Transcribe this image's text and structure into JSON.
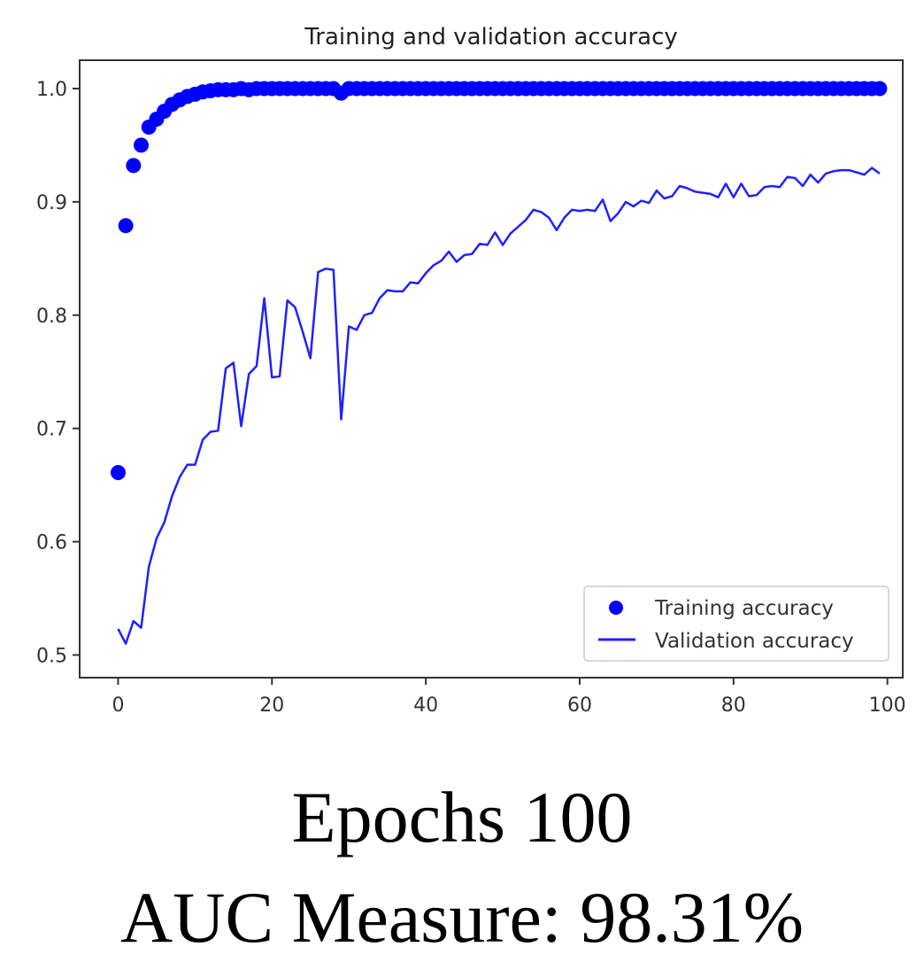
{
  "chart_data": {
    "type": "line",
    "title": "Training and validation accuracy",
    "xlabel": "",
    "ylabel": "",
    "xlim": [
      -5,
      102
    ],
    "ylim": [
      0.48,
      1.025
    ],
    "xticks": [
      0,
      20,
      40,
      60,
      80,
      100
    ],
    "yticks": [
      0.5,
      0.6,
      0.7,
      0.8,
      0.9,
      1.0
    ],
    "ytick_labels": [
      "0.5",
      "0.6",
      "0.7",
      "0.8",
      "0.9",
      "1.0"
    ],
    "grid": false,
    "legend_position": "lower-right",
    "colors": {
      "training": "#0000ff",
      "validation": "#2020ff"
    },
    "series": [
      {
        "name": "Training accuracy",
        "style": "markers",
        "x": [
          0,
          1,
          2,
          3,
          4,
          5,
          6,
          7,
          8,
          9,
          10,
          11,
          12,
          13,
          14,
          15,
          16,
          17,
          18,
          19,
          20,
          21,
          22,
          23,
          24,
          25,
          26,
          27,
          28,
          29,
          30,
          31,
          32,
          33,
          34,
          35,
          36,
          37,
          38,
          39,
          40,
          41,
          42,
          43,
          44,
          45,
          46,
          47,
          48,
          49,
          50,
          51,
          52,
          53,
          54,
          55,
          56,
          57,
          58,
          59,
          60,
          61,
          62,
          63,
          64,
          65,
          66,
          67,
          68,
          69,
          70,
          71,
          72,
          73,
          74,
          75,
          76,
          77,
          78,
          79,
          80,
          81,
          82,
          83,
          84,
          85,
          86,
          87,
          88,
          89,
          90,
          91,
          92,
          93,
          94,
          95,
          96,
          97,
          98,
          99
        ],
        "y": [
          0.661,
          0.879,
          0.932,
          0.95,
          0.966,
          0.973,
          0.98,
          0.986,
          0.99,
          0.993,
          0.995,
          0.997,
          0.998,
          0.999,
          0.999,
          0.999,
          1.0,
          0.999,
          1.0,
          1.0,
          1.0,
          1.0,
          1.0,
          1.0,
          1.0,
          1.0,
          1.0,
          1.0,
          1.0,
          0.996,
          1.0,
          1.0,
          1.0,
          1.0,
          1.0,
          1.0,
          1.0,
          1.0,
          1.0,
          1.0,
          1.0,
          1.0,
          1.0,
          1.0,
          1.0,
          1.0,
          1.0,
          1.0,
          1.0,
          1.0,
          1.0,
          1.0,
          1.0,
          1.0,
          1.0,
          1.0,
          1.0,
          1.0,
          1.0,
          1.0,
          1.0,
          1.0,
          1.0,
          1.0,
          1.0,
          1.0,
          1.0,
          1.0,
          1.0,
          1.0,
          1.0,
          1.0,
          1.0,
          1.0,
          1.0,
          1.0,
          1.0,
          1.0,
          1.0,
          1.0,
          1.0,
          1.0,
          1.0,
          1.0,
          1.0,
          1.0,
          1.0,
          1.0,
          1.0,
          1.0,
          1.0,
          1.0,
          1.0,
          1.0,
          1.0,
          1.0,
          1.0,
          1.0,
          1.0,
          1.0
        ]
      },
      {
        "name": "Validation accuracy",
        "style": "line",
        "x": [
          0,
          1,
          2,
          3,
          4,
          5,
          6,
          7,
          8,
          9,
          10,
          11,
          12,
          13,
          14,
          15,
          16,
          17,
          18,
          19,
          20,
          21,
          22,
          23,
          24,
          25,
          26,
          27,
          28,
          29,
          30,
          31,
          32,
          33,
          34,
          35,
          36,
          37,
          38,
          39,
          40,
          41,
          42,
          43,
          44,
          45,
          46,
          47,
          48,
          49,
          50,
          51,
          52,
          53,
          54,
          55,
          56,
          57,
          58,
          59,
          60,
          61,
          62,
          63,
          64,
          65,
          66,
          67,
          68,
          69,
          70,
          71,
          72,
          73,
          74,
          75,
          76,
          77,
          78,
          79,
          80,
          81,
          82,
          83,
          84,
          85,
          86,
          87,
          88,
          89,
          90,
          91,
          92,
          93,
          94,
          95,
          96,
          97,
          98,
          99
        ],
        "y": [
          0.523,
          0.51,
          0.53,
          0.524,
          0.578,
          0.603,
          0.617,
          0.64,
          0.657,
          0.668,
          0.668,
          0.69,
          0.697,
          0.698,
          0.753,
          0.758,
          0.702,
          0.748,
          0.755,
          0.815,
          0.745,
          0.746,
          0.813,
          0.807,
          0.785,
          0.762,
          0.838,
          0.841,
          0.84,
          0.708,
          0.79,
          0.787,
          0.8,
          0.802,
          0.815,
          0.822,
          0.821,
          0.821,
          0.829,
          0.828,
          0.837,
          0.844,
          0.848,
          0.856,
          0.847,
          0.853,
          0.854,
          0.863,
          0.862,
          0.873,
          0.862,
          0.872,
          0.878,
          0.884,
          0.893,
          0.891,
          0.886,
          0.875,
          0.886,
          0.893,
          0.892,
          0.893,
          0.892,
          0.902,
          0.883,
          0.89,
          0.9,
          0.896,
          0.901,
          0.899,
          0.91,
          0.903,
          0.905,
          0.914,
          0.912,
          0.909,
          0.908,
          0.907,
          0.904,
          0.916,
          0.904,
          0.916,
          0.905,
          0.906,
          0.913,
          0.914,
          0.913,
          0.922,
          0.921,
          0.914,
          0.924,
          0.917,
          0.925,
          0.927,
          0.928,
          0.928,
          0.926,
          0.924,
          0.93,
          0.925
        ]
      }
    ]
  },
  "caption": {
    "line1": "Epochs 100",
    "line2": "AUC Measure: 98.31%"
  }
}
